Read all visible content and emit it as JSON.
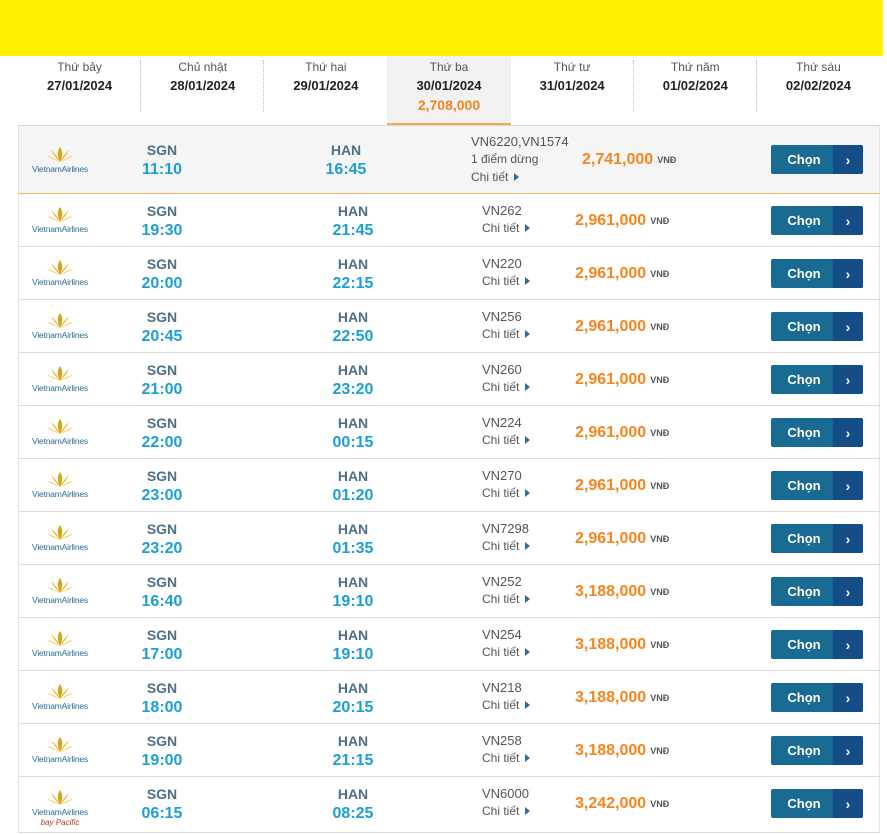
{
  "dates": [
    {
      "dow": "Thứ bảy",
      "date": "27/01/2024",
      "price": ""
    },
    {
      "dow": "Chủ nhật",
      "date": "28/01/2024",
      "price": ""
    },
    {
      "dow": "Thứ hai",
      "date": "29/01/2024",
      "price": ""
    },
    {
      "dow": "Thứ ba",
      "date": "30/01/2024",
      "price": "2,708,000"
    },
    {
      "dow": "Thứ tư",
      "date": "31/01/2024",
      "price": ""
    },
    {
      "dow": "Thứ năm",
      "date": "01/02/2024",
      "price": ""
    },
    {
      "dow": "Thứ sáu",
      "date": "02/02/2024",
      "price": ""
    }
  ],
  "active_date_index": 3,
  "airline_name": "VietnamAirlines",
  "currency": "VNĐ",
  "detail_label": "Chi tiết",
  "select_label": "Chọn",
  "colors": {
    "banner": "#fff200",
    "price": "#f7851e",
    "time": "#1a9fd8",
    "button": "#196b93"
  },
  "flights": [
    {
      "from": "SGN",
      "dep": "11:10",
      "to": "HAN",
      "arr": "16:45",
      "flight_no": "VN6220,VN1574",
      "stops": "1 điểm dừng",
      "price": "2,741,000",
      "partner": ""
    },
    {
      "from": "SGN",
      "dep": "19:30",
      "to": "HAN",
      "arr": "21:45",
      "flight_no": "VN262",
      "stops": "",
      "price": "2,961,000",
      "partner": ""
    },
    {
      "from": "SGN",
      "dep": "20:00",
      "to": "HAN",
      "arr": "22:15",
      "flight_no": "VN220",
      "stops": "",
      "price": "2,961,000",
      "partner": ""
    },
    {
      "from": "SGN",
      "dep": "20:45",
      "to": "HAN",
      "arr": "22:50",
      "flight_no": "VN256",
      "stops": "",
      "price": "2,961,000",
      "partner": ""
    },
    {
      "from": "SGN",
      "dep": "21:00",
      "to": "HAN",
      "arr": "23:20",
      "flight_no": "VN260",
      "stops": "",
      "price": "2,961,000",
      "partner": ""
    },
    {
      "from": "SGN",
      "dep": "22:00",
      "to": "HAN",
      "arr": "00:15",
      "flight_no": "VN224",
      "stops": "",
      "price": "2,961,000",
      "partner": ""
    },
    {
      "from": "SGN",
      "dep": "23:00",
      "to": "HAN",
      "arr": "01:20",
      "flight_no": "VN270",
      "stops": "",
      "price": "2,961,000",
      "partner": ""
    },
    {
      "from": "SGN",
      "dep": "23:20",
      "to": "HAN",
      "arr": "01:35",
      "flight_no": "VN7298",
      "stops": "",
      "price": "2,961,000",
      "partner": ""
    },
    {
      "from": "SGN",
      "dep": "16:40",
      "to": "HAN",
      "arr": "19:10",
      "flight_no": "VN252",
      "stops": "",
      "price": "3,188,000",
      "partner": ""
    },
    {
      "from": "SGN",
      "dep": "17:00",
      "to": "HAN",
      "arr": "19:10",
      "flight_no": "VN254",
      "stops": "",
      "price": "3,188,000",
      "partner": ""
    },
    {
      "from": "SGN",
      "dep": "18:00",
      "to": "HAN",
      "arr": "20:15",
      "flight_no": "VN218",
      "stops": "",
      "price": "3,188,000",
      "partner": ""
    },
    {
      "from": "SGN",
      "dep": "19:00",
      "to": "HAN",
      "arr": "21:15",
      "flight_no": "VN258",
      "stops": "",
      "price": "3,188,000",
      "partner": ""
    },
    {
      "from": "SGN",
      "dep": "06:15",
      "to": "HAN",
      "arr": "08:25",
      "flight_no": "VN6000",
      "stops": "",
      "price": "3,242,000",
      "partner": "bay Pacific"
    }
  ]
}
